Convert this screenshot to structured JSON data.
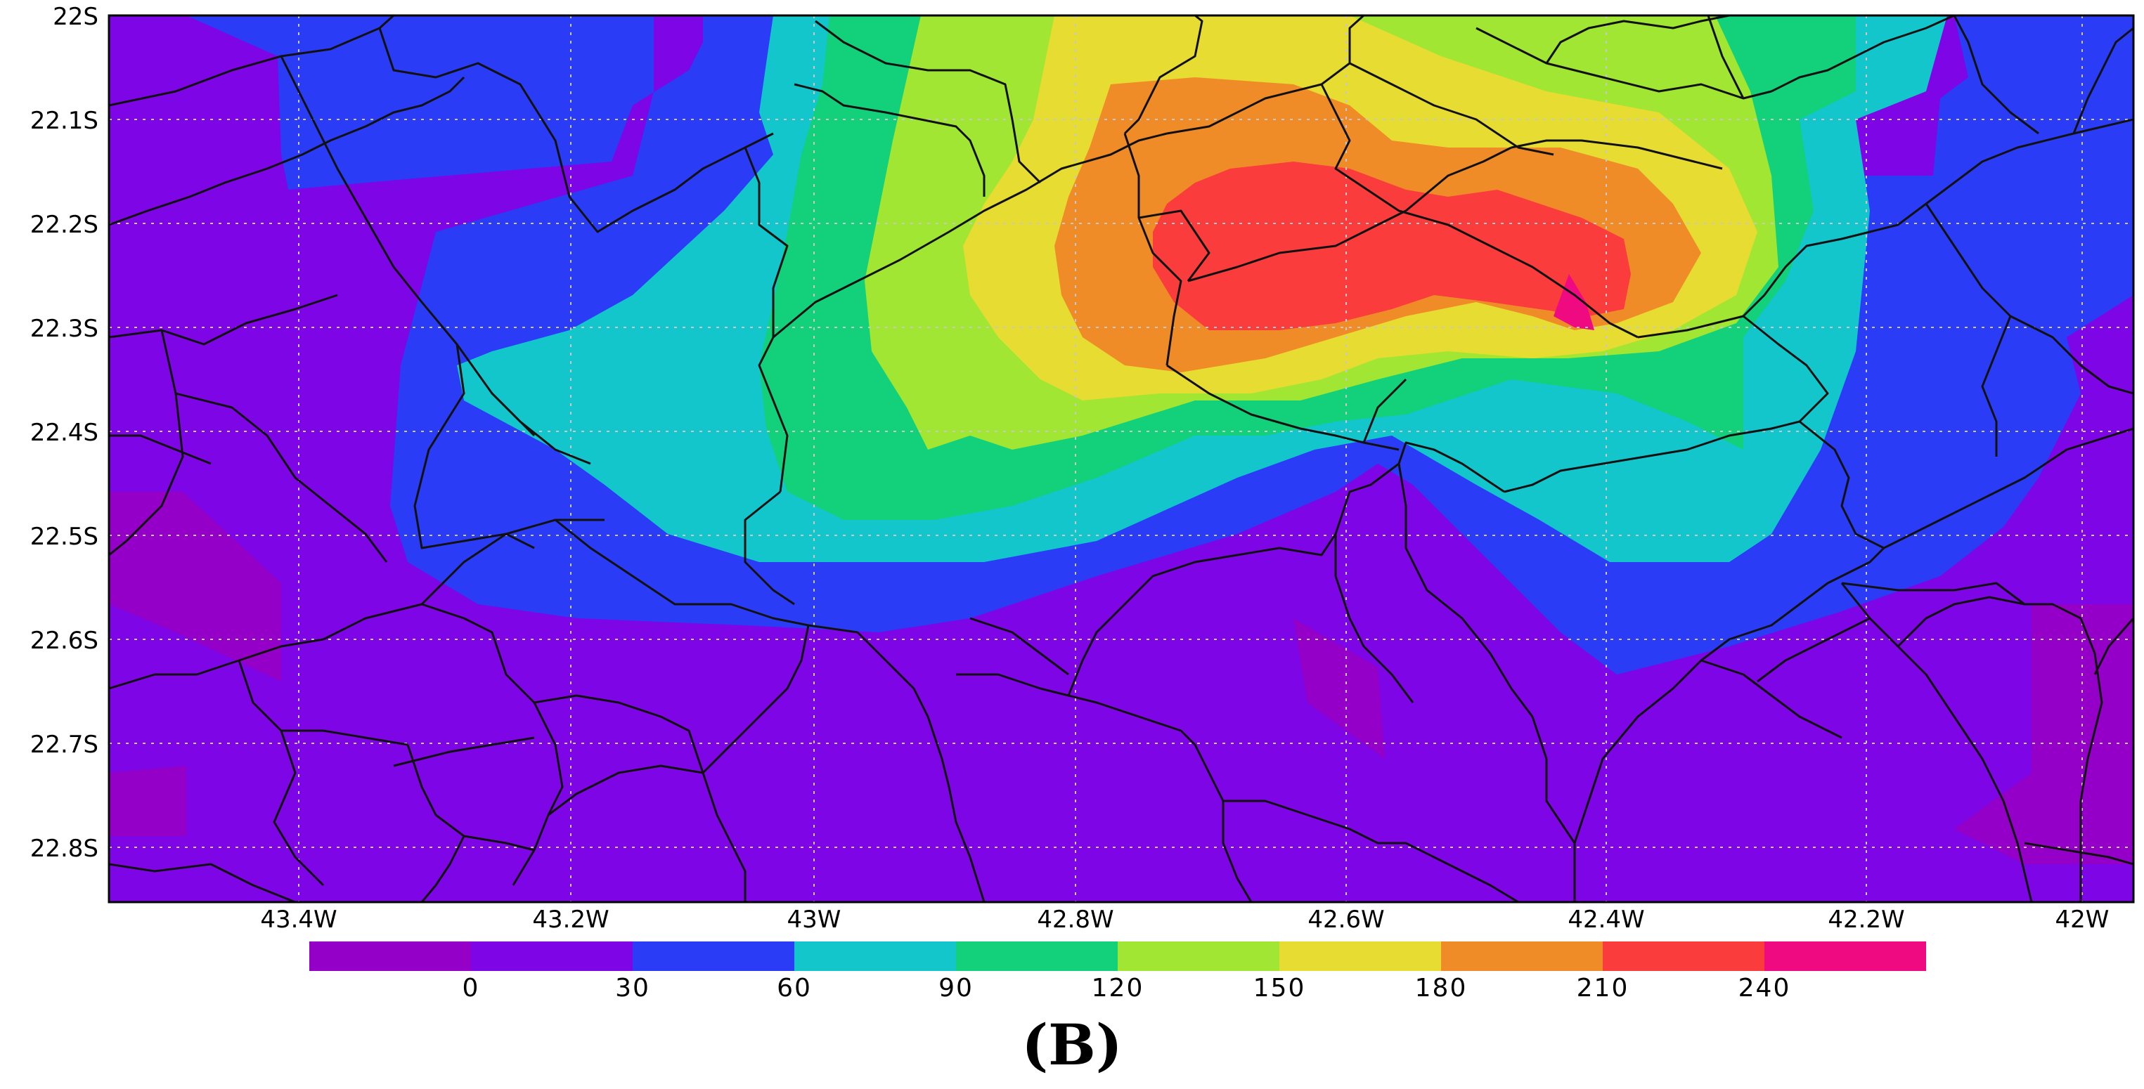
{
  "map": {
    "lat_ticks": [
      "22S",
      "22.1S",
      "22.2S",
      "22.3S",
      "22.4S",
      "22.5S",
      "22.6S",
      "22.7S",
      "22.8S"
    ],
    "lon_ticks": [
      "43.4W",
      "43.2W",
      "43W",
      "42.8W",
      "42.6W",
      "42.4W",
      "42.2W",
      "42W"
    ],
    "lon_range_deg_w": [
      43.55,
      41.93
    ],
    "lat_range_deg_s": [
      22.0,
      22.87
    ],
    "grid": "dotted",
    "field_peak_location": "approx 42.4W, 22.28S"
  },
  "colorbar": {
    "levels": [
      {
        "color": "#9400c8"
      },
      {
        "color": "#7d05e6"
      },
      {
        "color": "#2a3cf6"
      },
      {
        "color": "#12c6cc"
      },
      {
        "color": "#12d17a"
      },
      {
        "color": "#a0e632"
      },
      {
        "color": "#e6dc32"
      },
      {
        "color": "#f08c28"
      },
      {
        "color": "#fa3c3c"
      },
      {
        "color": "#f00a82"
      }
    ],
    "labels": [
      "0",
      "30",
      "60",
      "90",
      "120",
      "150",
      "180",
      "210",
      "240"
    ]
  },
  "panel_label": "(B)"
}
